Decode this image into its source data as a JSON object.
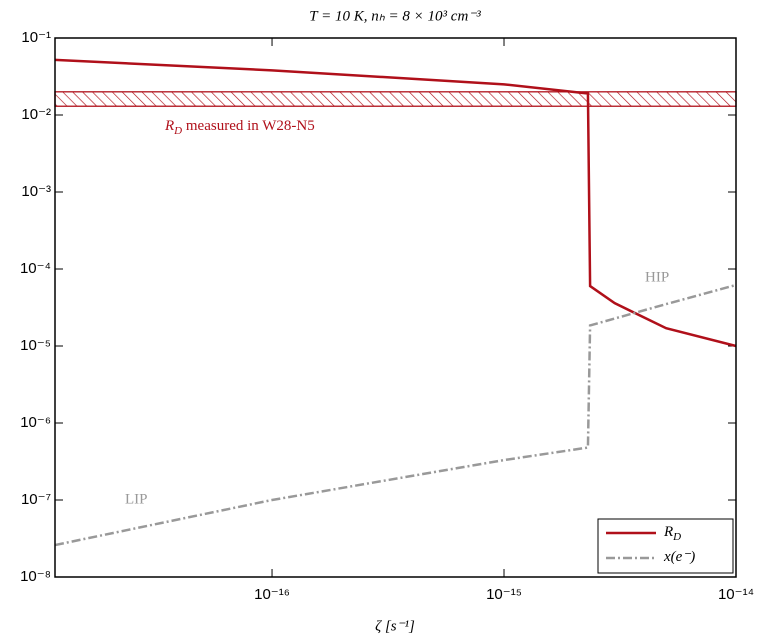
{
  "chart_data": {
    "type": "line",
    "title": "T = 10 K, nₕ = 8 × 10³ cm⁻³",
    "x_label": "ζ [s⁻¹]",
    "log_x": true,
    "log_y": true,
    "xlim": [
      1.16e-17,
      1e-14
    ],
    "ylim": [
      1e-08,
      0.1
    ],
    "xticks": [
      {
        "value": 1e-16,
        "label": "10⁻¹⁶"
      },
      {
        "value": 1e-15,
        "label": "10⁻¹⁵"
      },
      {
        "value": 1e-14,
        "label": "10⁻¹⁴"
      }
    ],
    "yticks": [
      {
        "value": 1e-08,
        "label": "10⁻⁸"
      },
      {
        "value": 1e-07,
        "label": "10⁻⁷"
      },
      {
        "value": 1e-06,
        "label": "10⁻⁶"
      },
      {
        "value": 1e-05,
        "label": "10⁻⁵"
      },
      {
        "value": 0.0001,
        "label": "10⁻⁴"
      },
      {
        "value": 0.001,
        "label": "10⁻³"
      },
      {
        "value": 0.01,
        "label": "10⁻²"
      },
      {
        "value": 0.1,
        "label": "10⁻¹"
      }
    ],
    "legend": "lower right",
    "series": [
      {
        "name": "R",
        "name_subscript": "D",
        "color": "#b0101a",
        "dash": "solid",
        "x": [
          1.16e-17,
          1e-16,
          1e-15,
          2.3e-15,
          2.35e-15,
          3e-15,
          5e-15,
          1e-14
        ],
        "values": [
          0.052,
          0.038,
          0.025,
          0.019,
          6e-05,
          3.6e-05,
          1.7e-05,
          1e-05
        ]
      },
      {
        "name": "x(e⁻)",
        "color": "#999999",
        "dash": "dashdot",
        "x": [
          1.16e-17,
          1e-16,
          1e-15,
          2.3e-15,
          2.35e-15,
          5e-15,
          1e-14
        ],
        "values": [
          2.6e-08,
          1e-07,
          3.3e-07,
          4.8e-07,
          1.85e-05,
          3.5e-05,
          6.2e-05
        ]
      }
    ],
    "measured_range": [
      0.013,
      0.02
    ],
    "measured_label": {
      "symbol": "R",
      "subscript": "D",
      "text": " measured in W28-N5"
    },
    "region_labels": [
      "LIP",
      "HIP"
    ]
  }
}
